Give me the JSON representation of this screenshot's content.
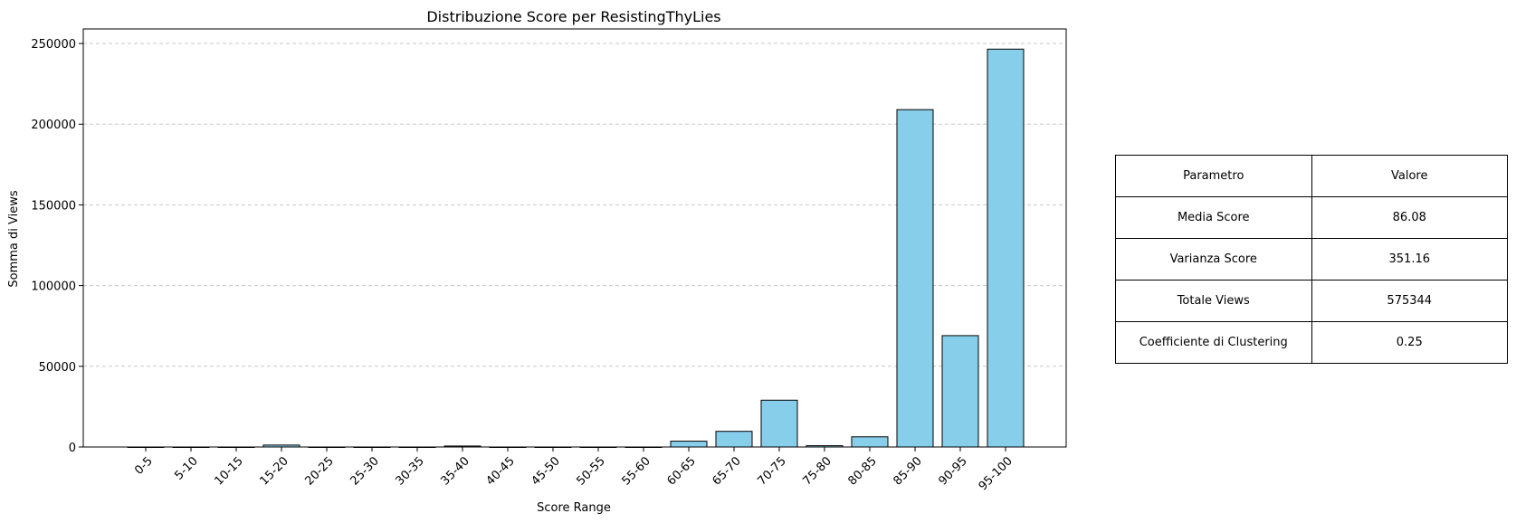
{
  "chart_data": {
    "type": "bar",
    "title": "Distribuzione Score per ResistingThyLies",
    "xlabel": "Score Range",
    "ylabel": "Somma di Views",
    "categories": [
      "0-5",
      "5-10",
      "10-15",
      "15-20",
      "20-25",
      "25-30",
      "30-35",
      "35-40",
      "40-45",
      "45-50",
      "50-55",
      "55-60",
      "60-65",
      "65-70",
      "70-75",
      "75-80",
      "80-85",
      "85-90",
      "90-95",
      "95-100"
    ],
    "values": [
      0,
      0,
      0,
      1200,
      0,
      0,
      0,
      600,
      0,
      0,
      0,
      0,
      3600,
      9700,
      29000,
      800,
      6300,
      209000,
      69000,
      246500
    ],
    "ylim": [
      0,
      259000
    ],
    "yticks": [
      0,
      50000,
      100000,
      150000,
      200000,
      250000
    ],
    "ytick_labels": [
      "0",
      "50000",
      "100000",
      "150000",
      "200000",
      "250000"
    ],
    "grid": "y-dashed",
    "colors": {
      "bar_fill": "#87CEEB",
      "bar_edge": "#000000",
      "grid": "#c8c8c8"
    }
  },
  "table": {
    "header": {
      "param": "Parametro",
      "value": "Valore"
    },
    "rows": [
      {
        "param": "Media Score",
        "value": "86.08"
      },
      {
        "param": "Varianza Score",
        "value": "351.16"
      },
      {
        "param": "Totale Views",
        "value": "575344"
      },
      {
        "param": "Coefficiente di Clustering",
        "value": "0.25"
      }
    ]
  }
}
